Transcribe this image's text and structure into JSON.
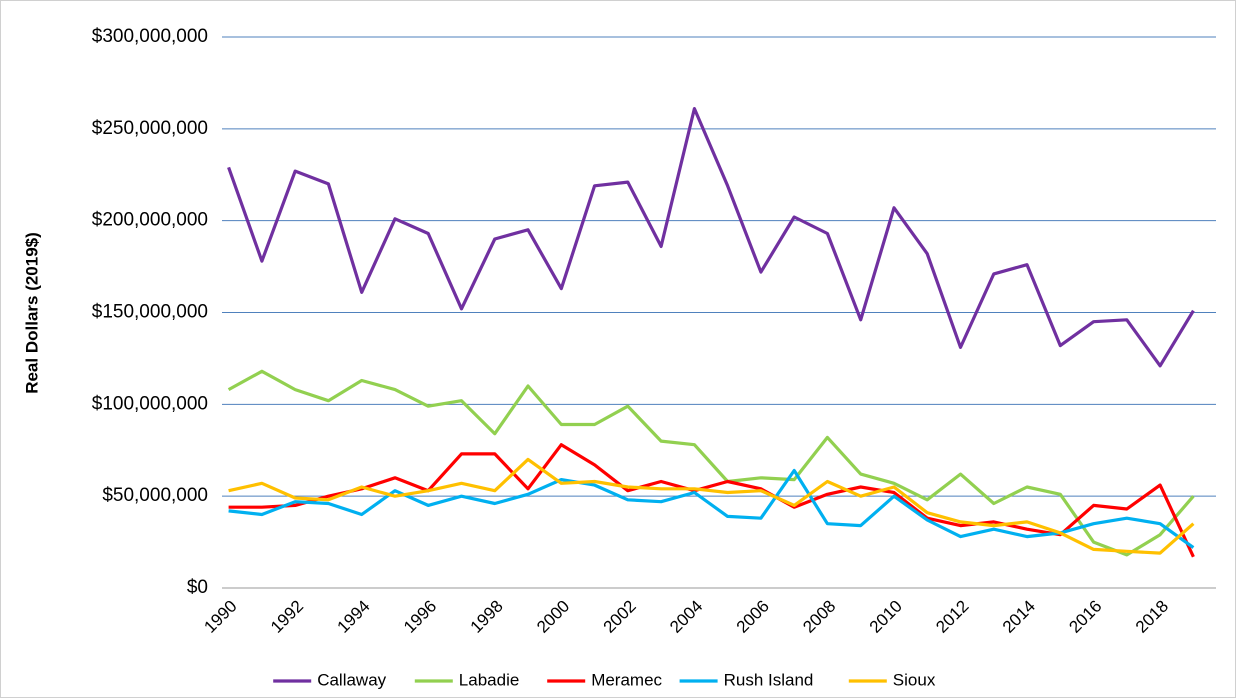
{
  "chart_data": {
    "type": "line",
    "y_label": "Real Dollars (2019$)",
    "categories": [
      "1990",
      null,
      "1992",
      null,
      "1994",
      null,
      "1996",
      null,
      "1998",
      null,
      "2000",
      null,
      "2002",
      null,
      "2004",
      null,
      "2006",
      null,
      "2008",
      null,
      "2010",
      null,
      "2012",
      null,
      "2014",
      null,
      "2016",
      null,
      "2018",
      null
    ],
    "ylim": [
      0,
      300000000
    ],
    "yticks": [
      {
        "value": 0,
        "label": "$0"
      },
      {
        "value": 50000000,
        "label": "$50,000,000"
      },
      {
        "value": 100000000,
        "label": "$100,000,000"
      },
      {
        "value": 150000000,
        "label": "$150,000,000"
      },
      {
        "value": 200000000,
        "label": "$200,000,000"
      },
      {
        "value": 250000000,
        "label": "$250,000,000"
      },
      {
        "value": 300000000,
        "label": "$300,000,000"
      }
    ],
    "grid": true,
    "legend": "bottom",
    "series": [
      {
        "name": "Callaway",
        "color": "#7030a0",
        "values": [
          229000000,
          178000000,
          227000000,
          220000000,
          161000000,
          201000000,
          193000000,
          152000000,
          190000000,
          195000000,
          163000000,
          219000000,
          221000000,
          186000000,
          261000000,
          219000000,
          172000000,
          202000000,
          193000000,
          146000000,
          207000000,
          182000000,
          131000000,
          171000000,
          176000000,
          132000000,
          145000000,
          146000000,
          121000000,
          151000000
        ]
      },
      {
        "name": "Labadie",
        "color": "#92d050",
        "values": [
          108000000,
          118000000,
          108000000,
          102000000,
          113000000,
          108000000,
          99000000,
          102000000,
          84000000,
          110000000,
          89000000,
          89000000,
          99000000,
          80000000,
          78000000,
          58000000,
          60000000,
          59000000,
          82000000,
          62000000,
          57000000,
          48000000,
          62000000,
          46000000,
          55000000,
          51000000,
          25000000,
          18000000,
          29000000,
          50000000
        ]
      },
      {
        "name": "Meramec",
        "color": "#ff0000",
        "values": [
          44000000,
          44000000,
          45000000,
          50000000,
          54000000,
          60000000,
          53000000,
          73000000,
          73000000,
          54000000,
          78000000,
          67000000,
          53000000,
          58000000,
          53000000,
          58000000,
          54000000,
          44000000,
          51000000,
          55000000,
          52000000,
          38000000,
          34000000,
          36000000,
          32000000,
          29000000,
          45000000,
          43000000,
          56000000,
          17000000
        ]
      },
      {
        "name": "Rush Island",
        "color": "#00b0f0",
        "values": [
          42000000,
          40000000,
          47000000,
          46000000,
          40000000,
          53000000,
          45000000,
          50000000,
          46000000,
          51000000,
          59000000,
          56000000,
          48000000,
          47000000,
          52000000,
          39000000,
          38000000,
          64000000,
          35000000,
          34000000,
          50000000,
          37000000,
          28000000,
          32000000,
          28000000,
          30000000,
          35000000,
          38000000,
          35000000,
          22000000
        ]
      },
      {
        "name": "Sioux",
        "color": "#ffc000",
        "values": [
          53000000,
          57000000,
          49000000,
          48000000,
          55000000,
          50000000,
          53000000,
          57000000,
          53000000,
          70000000,
          57000000,
          58000000,
          55000000,
          54000000,
          54000000,
          52000000,
          53000000,
          45000000,
          58000000,
          50000000,
          55000000,
          41000000,
          36000000,
          34000000,
          36000000,
          30000000,
          21000000,
          20000000,
          19000000,
          35000000
        ]
      }
    ]
  }
}
